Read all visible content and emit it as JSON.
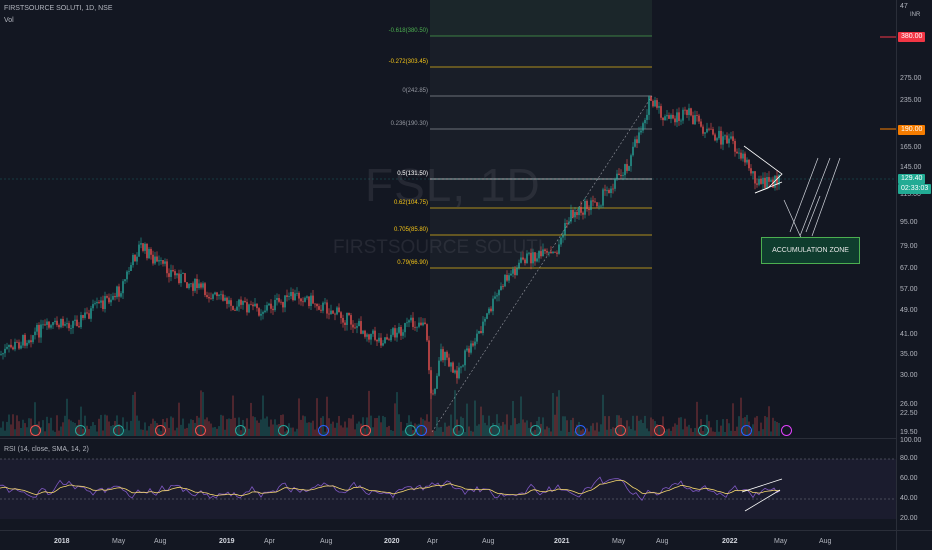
{
  "symbol": {
    "ticker_line": "FIRSTSOURCE SOLUTI, 1D, NSE",
    "volume_label": "Vol",
    "watermark_symbol": "FSL, 1D",
    "watermark_name": "FIRSTSOURCE SOLUTI"
  },
  "currency": "INR",
  "price_axis": [
    "47",
    "380.00",
    "275.00",
    "235.00",
    "190.00",
    "165.00",
    "145.00",
    "115.00",
    "95.00",
    "79.00",
    "67.00",
    "57.00",
    "49.00",
    "41.00",
    "35.00",
    "30.00",
    "26.00",
    "22.50",
    "19.50"
  ],
  "badges": {
    "target_high": "380.00",
    "target_mid": "190.00",
    "last_price": "129.40",
    "countdown": "02:33:03"
  },
  "fib_levels": [
    {
      "label": "-0.618(380.50)",
      "color": "#4caf50"
    },
    {
      "label": "-0.272(303.45)",
      "color": "#f5c518"
    },
    {
      "label": "0(242.85)",
      "color": "#9598a1"
    },
    {
      "label": "0.236(190.30)",
      "color": "#9598a1"
    },
    {
      "label": "0.5(131.50)",
      "color": "#ffffff"
    },
    {
      "label": "0.62(104.75)",
      "color": "#f5c518"
    },
    {
      "label": "0.705(85.80)",
      "color": "#f5c518"
    },
    {
      "label": "0.79(66.90)",
      "color": "#f5c518"
    }
  ],
  "annotation": {
    "accumulation": "ACCUMULATION ZONE"
  },
  "rsi": {
    "title": "RSI (14, close, SMA, 14, 2)",
    "axis": [
      "100.00",
      "80.00",
      "60.00",
      "40.00",
      "20.00"
    ]
  },
  "time_axis": [
    "2018",
    "May",
    "Aug",
    "2019",
    "Apr",
    "Aug",
    "2020",
    "Apr",
    "Aug",
    "2021",
    "May",
    "Aug",
    "2022",
    "May",
    "Aug"
  ],
  "colors": {
    "background": "#131722",
    "up_candle": "#26a69a",
    "down_candle": "#ef5350",
    "rsi_line": "#7e57c2",
    "rsi_ma": "#f5d76e"
  }
}
